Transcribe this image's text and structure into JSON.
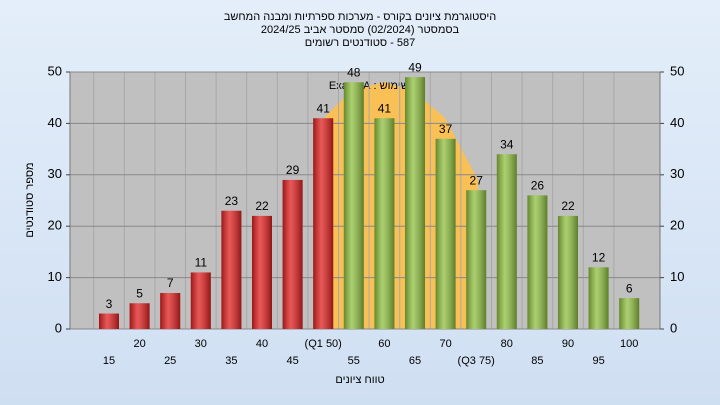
{
  "chart_data": {
    "type": "bar",
    "title": [
      "היסטוגרמת ציונים בקורס - מערכות ספרתיות ומבנה המחשב",
      "בסמסטר  (02/2024)  סמסטר אביב 2024/25",
      "587 - סטודנטים רשומים"
    ],
    "annotation": "בשימוש : Exam_A",
    "x_label": "טווח ציונים",
    "y_label": "מספר סטודנטים",
    "categories": [
      "15",
      "20",
      "25",
      "30",
      "35",
      "40",
      "45",
      "(Q1 50)",
      "55",
      "60",
      "65",
      "70",
      "(Q3 75)",
      "80",
      "85",
      "90",
      "95",
      "100"
    ],
    "values": [
      3,
      5,
      7,
      11,
      23,
      22,
      29,
      41,
      48,
      41,
      49,
      37,
      27,
      34,
      26,
      22,
      12,
      6
    ],
    "colors": [
      "#e02020",
      "#e02020",
      "#e02020",
      "#e02020",
      "#e02020",
      "#e02020",
      "#e02020",
      "#e02020",
      "#8fc040",
      "#8fc040",
      "#8fc040",
      "#8fc040",
      "#8fc040",
      "#8fc040",
      "#8fc040",
      "#8fc040",
      "#8fc040",
      "#8fc040"
    ],
    "ylim": [
      0,
      50
    ],
    "yticks": [
      0,
      10,
      20,
      30,
      40,
      50
    ],
    "grid": true
  }
}
